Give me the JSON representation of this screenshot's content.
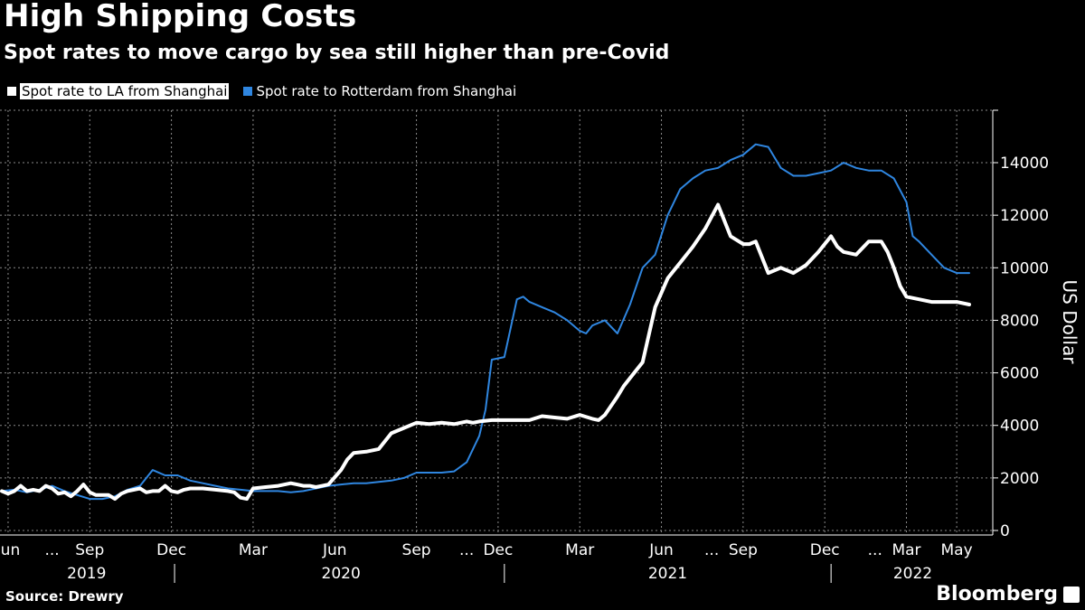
{
  "header": {
    "title": "High Shipping Costs",
    "subtitle": "Spot rates to move cargo by sea still higher than pre-Covid"
  },
  "legend": [
    {
      "label": "Spot rate to LA from Shanghai",
      "color": "#ffffff"
    },
    {
      "label": "Spot rate to Rotterdam from Shanghai",
      "color": "#2f86e0"
    }
  ],
  "footer": {
    "source": "Source: Drewry",
    "brand": "Bloomberg"
  },
  "chart_data": {
    "type": "line",
    "title": "High Shipping Costs",
    "subtitle": "Spot rates to move cargo by sea still higher than pre-Covid",
    "ylabel": "US Dollar",
    "xlabel": "",
    "ylim": [
      0,
      15000
    ],
    "yticks": [
      0,
      2000,
      4000,
      6000,
      8000,
      10000,
      12000,
      14000
    ],
    "grid": true,
    "legend_position": "top-left",
    "x_unit": "week index starting 2019-06-01",
    "xlim": [
      0,
      154
    ],
    "xticks": [
      {
        "label": "Jun",
        "x": 1
      },
      {
        "label": "...",
        "x": 8
      },
      {
        "label": "Sep",
        "x": 14
      },
      {
        "label": "Dec",
        "x": 27
      },
      {
        "label": "Mar",
        "x": 40
      },
      {
        "label": "Jun",
        "x": 53
      },
      {
        "label": "Sep",
        "x": 66
      },
      {
        "label": "...",
        "x": 74
      },
      {
        "label": "Dec",
        "x": 79
      },
      {
        "label": "Mar",
        "x": 92
      },
      {
        "label": "Jun",
        "x": 105
      },
      {
        "label": "...",
        "x": 113
      },
      {
        "label": "Sep",
        "x": 118
      },
      {
        "label": "Dec",
        "x": 131
      },
      {
        "label": "...",
        "x": 139
      },
      {
        "label": "Mar",
        "x": 144
      },
      {
        "label": "May",
        "x": 152
      }
    ],
    "year_labels": [
      {
        "label": "2019",
        "x": 13.5
      },
      {
        "label": "2020",
        "x": 54
      },
      {
        "label": "2021",
        "x": 106
      },
      {
        "label": "2022",
        "x": 145
      }
    ],
    "year_separators": [
      27.5,
      80,
      132
    ],
    "series": [
      {
        "name": "Spot rate to LA from Shanghai",
        "color": "#ffffff",
        "x": [
          0,
          1,
          2,
          3,
          4,
          5,
          6,
          7,
          8,
          9,
          10,
          11,
          12,
          13,
          14,
          15,
          16,
          17,
          18,
          19,
          20,
          22,
          23,
          24,
          25,
          26,
          27,
          28,
          29,
          30,
          32,
          34,
          36,
          37,
          38,
          39,
          40,
          42,
          44,
          46,
          47,
          48,
          49,
          50,
          51,
          52,
          54,
          55,
          56,
          58,
          60,
          62,
          64,
          66,
          68,
          70,
          72,
          74,
          75,
          76,
          78,
          80,
          82,
          84,
          86,
          88,
          90,
          92,
          94,
          95,
          96,
          98,
          99,
          100,
          102,
          104,
          106,
          108,
          110,
          112,
          114,
          116,
          118,
          119,
          120,
          122,
          124,
          126,
          128,
          130,
          132,
          133,
          134,
          136,
          138,
          140,
          141,
          142,
          143,
          144,
          146,
          148,
          150,
          152,
          154
        ],
        "y": [
          1500,
          1400,
          1500,
          1700,
          1500,
          1550,
          1500,
          1700,
          1600,
          1400,
          1450,
          1300,
          1500,
          1750,
          1450,
          1350,
          1350,
          1350,
          1200,
          1400,
          1500,
          1600,
          1450,
          1500,
          1500,
          1700,
          1500,
          1450,
          1550,
          1600,
          1600,
          1550,
          1500,
          1450,
          1250,
          1200,
          1600,
          1650,
          1700,
          1800,
          1750,
          1700,
          1700,
          1650,
          1700,
          1750,
          2300,
          2700,
          2950,
          3000,
          3100,
          3700,
          3900,
          4100,
          4050,
          4100,
          4050,
          4150,
          4100,
          4150,
          4200,
          4200,
          4200,
          4200,
          4350,
          4300,
          4250,
          4400,
          4250,
          4200,
          4400,
          5100,
          5500,
          5800,
          6400,
          8500,
          9600,
          10200,
          10800,
          11500,
          12400,
          11200,
          10900,
          10900,
          11000,
          9800,
          10000,
          9800,
          10100,
          10600,
          11200,
          10800,
          10600,
          10500,
          11000,
          11000,
          10600,
          10000,
          9300,
          8900,
          8800,
          8700,
          8700,
          8700,
          8600
        ]
      },
      {
        "name": "Spot rate to Rotterdam from Shanghai",
        "color": "#2f86e0",
        "x": [
          0,
          2,
          4,
          6,
          8,
          10,
          12,
          14,
          16,
          18,
          20,
          22,
          24,
          26,
          28,
          30,
          32,
          34,
          36,
          38,
          40,
          42,
          44,
          46,
          48,
          50,
          52,
          54,
          56,
          58,
          60,
          62,
          64,
          66,
          68,
          70,
          72,
          74,
          76,
          77,
          78,
          80,
          82,
          83,
          84,
          86,
          88,
          90,
          92,
          93,
          94,
          96,
          98,
          100,
          102,
          104,
          106,
          108,
          110,
          112,
          114,
          116,
          118,
          120,
          122,
          124,
          126,
          128,
          130,
          132,
          134,
          136,
          138,
          140,
          142,
          144,
          145,
          146,
          148,
          150,
          152,
          154
        ],
        "y": [
          1500,
          1550,
          1450,
          1550,
          1700,
          1500,
          1350,
          1200,
          1200,
          1300,
          1550,
          1700,
          2300,
          2100,
          2100,
          1900,
          1800,
          1700,
          1600,
          1550,
          1500,
          1500,
          1500,
          1450,
          1500,
          1600,
          1700,
          1750,
          1800,
          1800,
          1850,
          1900,
          2000,
          2200,
          2200,
          2200,
          2250,
          2600,
          3600,
          4600,
          6500,
          6600,
          8800,
          8900,
          8700,
          8500,
          8300,
          8000,
          7600,
          7500,
          7800,
          8000,
          7500,
          8600,
          10000,
          10500,
          12000,
          13000,
          13400,
          13700,
          13800,
          14100,
          14300,
          14700,
          14600,
          13800,
          13500,
          13500,
          13600,
          13700,
          14000,
          13800,
          13700,
          13700,
          13400,
          12500,
          11200,
          11000,
          10500,
          10000,
          9800,
          9800
        ]
      }
    ]
  }
}
